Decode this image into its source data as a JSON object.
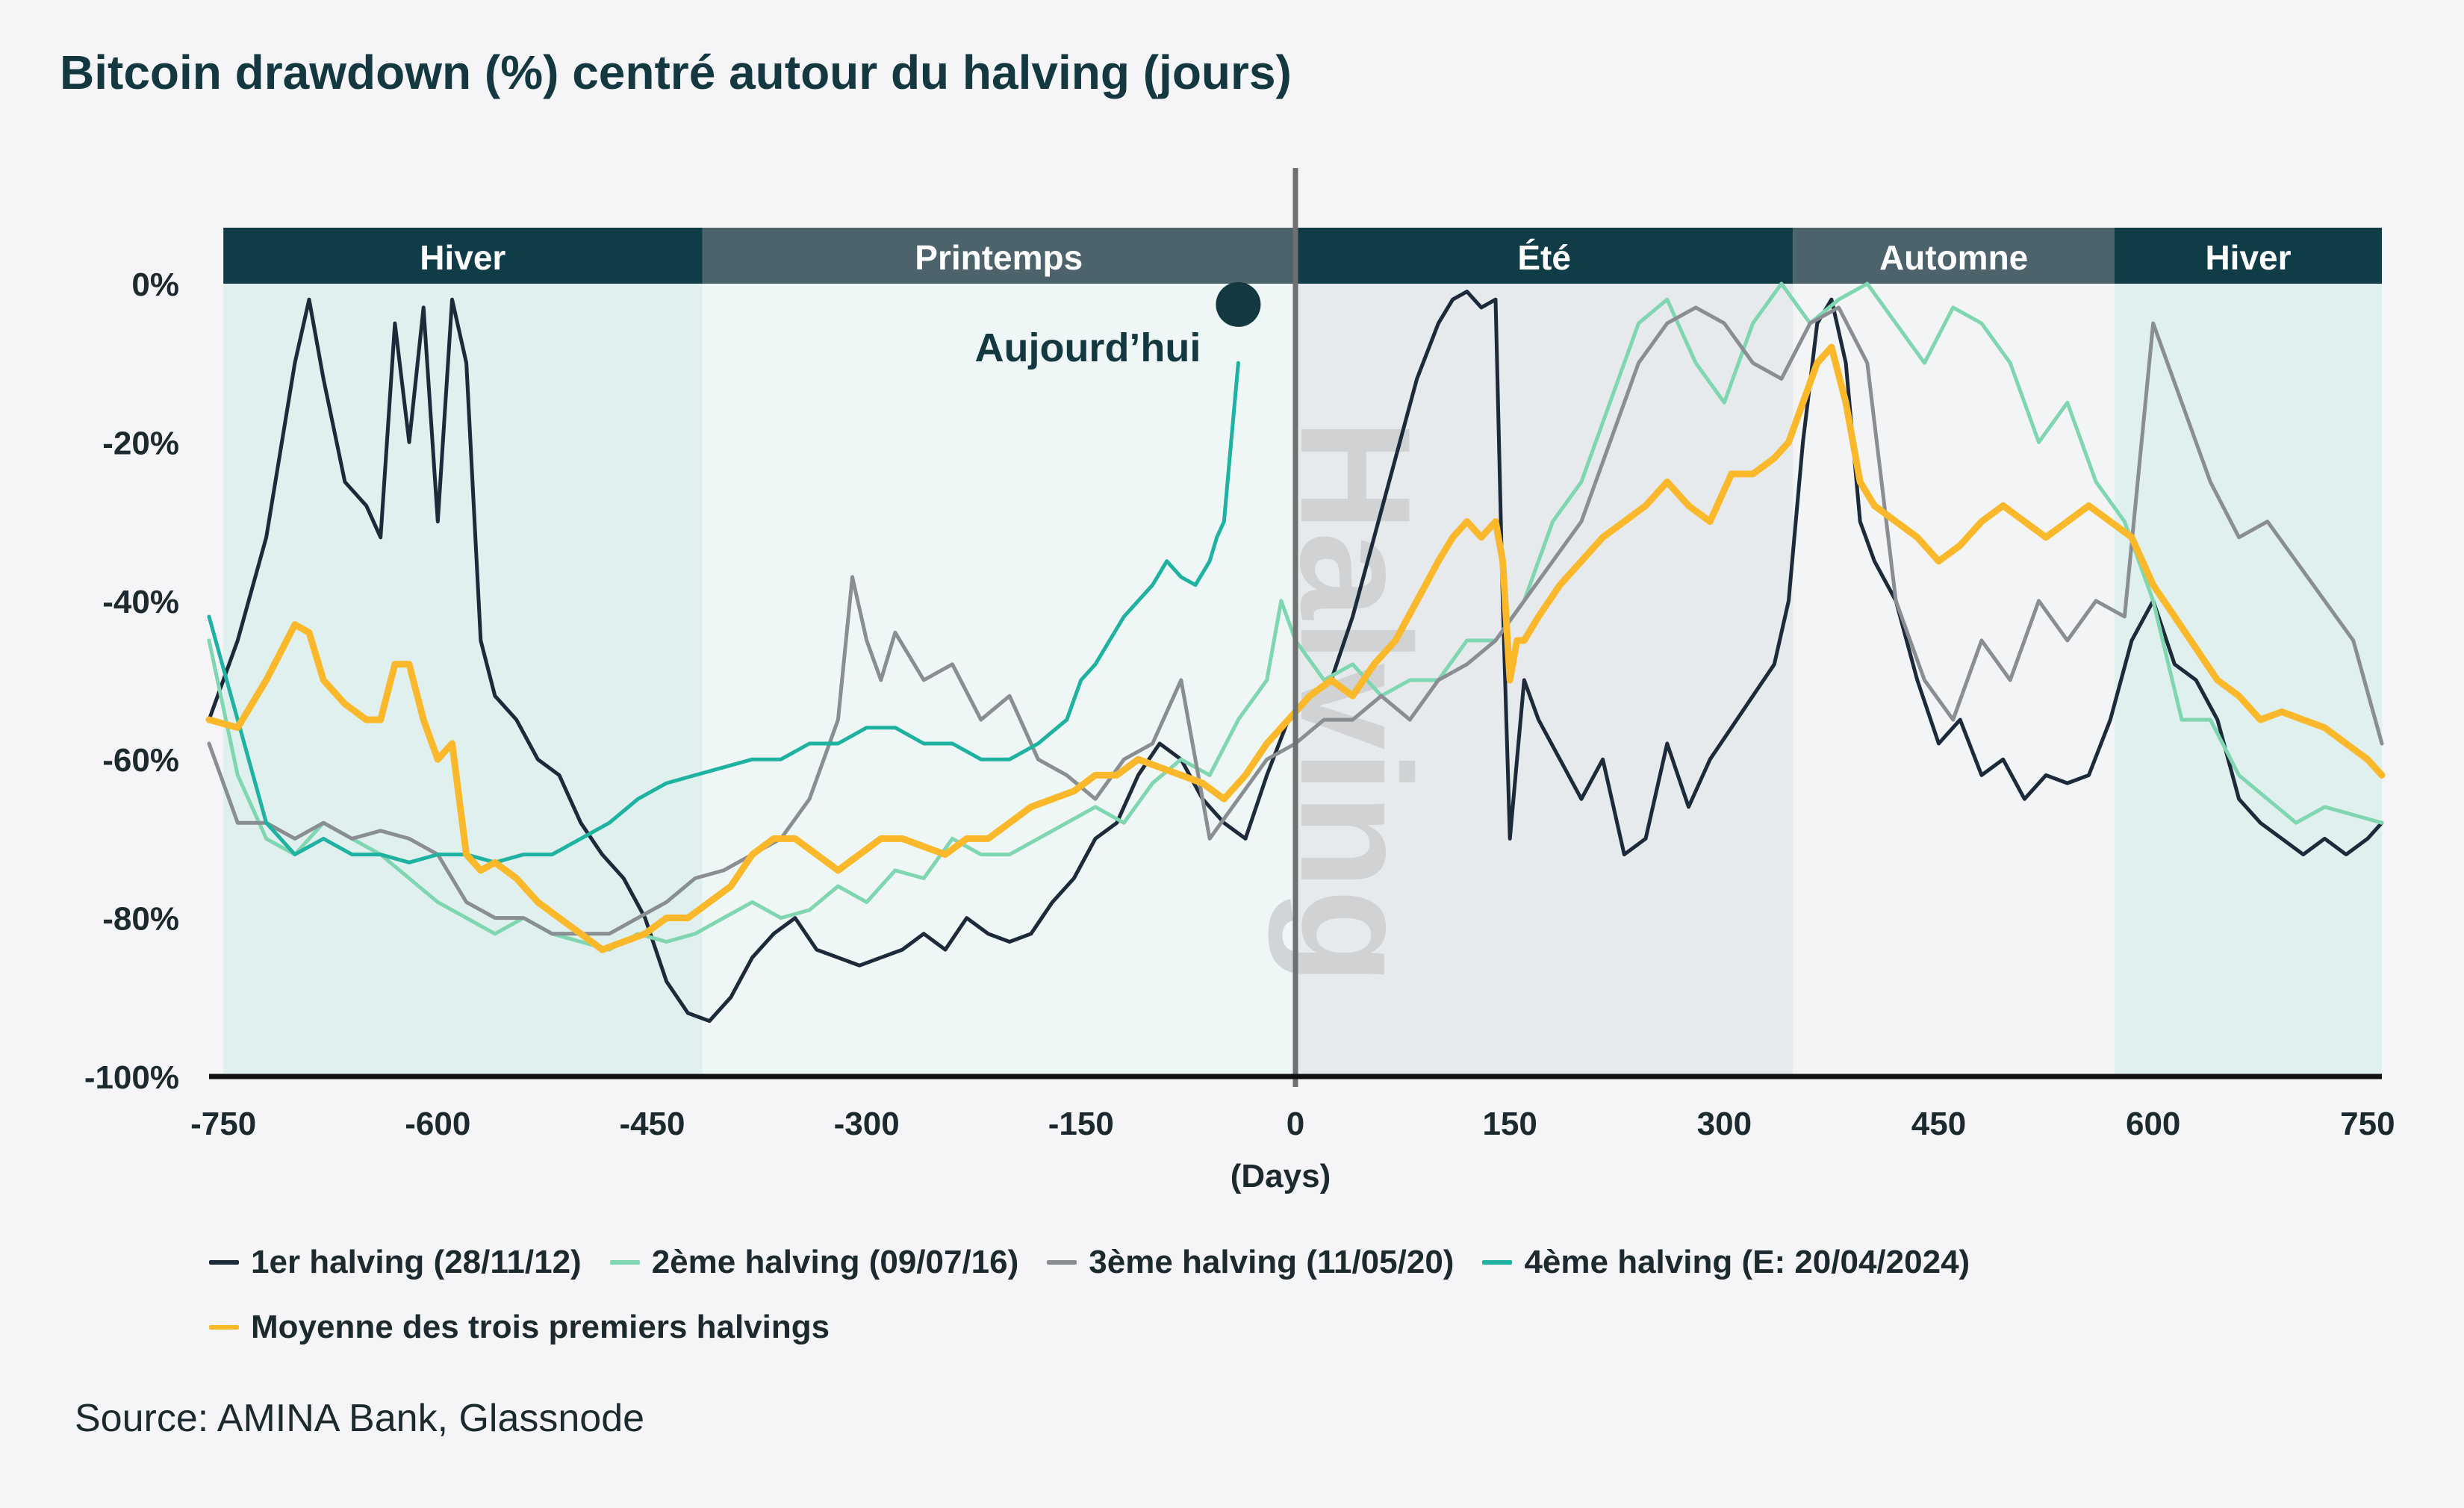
{
  "chart_data": {
    "type": "line",
    "title": "Bitcoin drawdown (%) centré autour du halving (jours)",
    "xlabel": "(Days)",
    "ylabel": "",
    "xlim": [
      -750,
      750
    ],
    "ylim": [
      -100,
      0
    ],
    "x_ticks": [
      "-750",
      "-600",
      "-450",
      "-300",
      "-150",
      "0",
      "150",
      "300",
      "450",
      "600",
      "750"
    ],
    "x_tick_values": [
      -750,
      -600,
      -450,
      -300,
      -150,
      0,
      150,
      300,
      450,
      600,
      750
    ],
    "y_ticks": [
      "0%",
      "-20%",
      "-40%",
      "-60%",
      "-80%",
      "-100%"
    ],
    "y_tick_values": [
      0,
      -20,
      -40,
      -60,
      -80,
      -100
    ],
    "seasons": [
      {
        "label": "Hiver",
        "from": -750,
        "to": -415,
        "band": "#0f3c46",
        "fill": "#e0f0ee"
      },
      {
        "label": "Printemps",
        "from": -415,
        "to": 0,
        "band": "#4c636b",
        "fill": "#eef6f6"
      },
      {
        "label": "Été",
        "from": 0,
        "to": 348,
        "band": "#0f3c46",
        "fill": "#e6eaec"
      },
      {
        "label": "Automne",
        "from": 348,
        "to": 573,
        "band": "#4c636b",
        "fill": "#f3f4f6"
      },
      {
        "label": "Hiver",
        "from": 573,
        "to": 760,
        "band": "#0f3c46",
        "fill": "#e0f0ee"
      }
    ],
    "halving_label": "Halving",
    "annotation": {
      "text": "Aujourd’hui",
      "x": -40,
      "y": -3
    },
    "series": [
      {
        "name": "1er halving (28/11/12)",
        "color": "#1c2a3a",
        "x": [
          -760,
          -740,
          -720,
          -700,
          -690,
          -680,
          -665,
          -650,
          -640,
          -630,
          -620,
          -610,
          -600,
          -590,
          -580,
          -570,
          -560,
          -545,
          -530,
          -515,
          -500,
          -485,
          -470,
          -455,
          -440,
          -425,
          -410,
          -395,
          -380,
          -365,
          -350,
          -335,
          -320,
          -305,
          -290,
          -275,
          -260,
          -245,
          -230,
          -215,
          -200,
          -185,
          -170,
          -155,
          -140,
          -125,
          -110,
          -95,
          -80,
          -65,
          -50,
          -35,
          -20,
          -5,
          10,
          25,
          40,
          55,
          70,
          85,
          100,
          110,
          120,
          130,
          140,
          145,
          150,
          155,
          160,
          170,
          185,
          200,
          215,
          230,
          245,
          260,
          275,
          290,
          305,
          320,
          335,
          345,
          355,
          365,
          375,
          385,
          395,
          405,
          420,
          435,
          450,
          465,
          480,
          495,
          510,
          525,
          540,
          555,
          570,
          585,
          600,
          615,
          630,
          645,
          660,
          675,
          690,
          705,
          720,
          735,
          750,
          760
        ],
        "y": [
          -55,
          -45,
          -32,
          -10,
          -2,
          -12,
          -25,
          -28,
          -32,
          -5,
          -20,
          -3,
          -30,
          -2,
          -10,
          -45,
          -52,
          -55,
          -60,
          -62,
          -68,
          -72,
          -75,
          -80,
          -88,
          -92,
          -93,
          -90,
          -85,
          -82,
          -80,
          -84,
          -85,
          -86,
          -85,
          -84,
          -82,
          -84,
          -80,
          -82,
          -83,
          -82,
          -78,
          -75,
          -70,
          -68,
          -62,
          -58,
          -60,
          -65,
          -68,
          -70,
          -62,
          -55,
          -52,
          -50,
          -42,
          -32,
          -22,
          -12,
          -5,
          -2,
          -1,
          -3,
          -2,
          -40,
          -70,
          -60,
          -50,
          -55,
          -60,
          -65,
          -60,
          -72,
          -70,
          -58,
          -66,
          -60,
          -56,
          -52,
          -48,
          -40,
          -20,
          -5,
          -2,
          -10,
          -30,
          -35,
          -40,
          -50,
          -58,
          -55,
          -62,
          -60,
          -65,
          -62,
          -63,
          -62,
          -55,
          -45,
          -40,
          -48,
          -50,
          -55,
          -65,
          -68,
          -70,
          -72,
          -70,
          -72,
          -70,
          -68
        ]
      },
      {
        "name": "2ème halving (09/07/16)",
        "color": "#7fd6b0",
        "x": [
          -760,
          -740,
          -720,
          -700,
          -680,
          -660,
          -640,
          -620,
          -600,
          -580,
          -560,
          -540,
          -520,
          -500,
          -480,
          -460,
          -440,
          -420,
          -400,
          -380,
          -360,
          -340,
          -320,
          -300,
          -280,
          -260,
          -240,
          -220,
          -200,
          -180,
          -160,
          -140,
          -120,
          -100,
          -80,
          -60,
          -40,
          -20,
          -10,
          0,
          20,
          40,
          60,
          80,
          100,
          120,
          140,
          160,
          180,
          200,
          220,
          240,
          260,
          280,
          300,
          320,
          340,
          360,
          380,
          400,
          420,
          440,
          460,
          480,
          500,
          520,
          540,
          560,
          580,
          600,
          620,
          640,
          660,
          680,
          700,
          720,
          740,
          760
        ],
        "y": [
          -45,
          -62,
          -70,
          -72,
          -68,
          -70,
          -72,
          -75,
          -78,
          -80,
          -82,
          -80,
          -82,
          -83,
          -84,
          -82,
          -83,
          -82,
          -80,
          -78,
          -80,
          -79,
          -76,
          -78,
          -74,
          -75,
          -70,
          -72,
          -72,
          -70,
          -68,
          -66,
          -68,
          -63,
          -60,
          -62,
          -55,
          -50,
          -40,
          -45,
          -50,
          -48,
          -52,
          -50,
          -50,
          -45,
          -45,
          -40,
          -30,
          -25,
          -15,
          -5,
          -2,
          -10,
          -15,
          -5,
          0,
          -5,
          -2,
          0,
          -5,
          -10,
          -3,
          -5,
          -10,
          -20,
          -15,
          -25,
          -30,
          -40,
          -55,
          -55,
          -62,
          -65,
          -68,
          -66,
          -67,
          -68
        ]
      },
      {
        "name": "3ème halving (11/05/20)",
        "color": "#8a8e92",
        "x": [
          -760,
          -740,
          -720,
          -700,
          -680,
          -660,
          -640,
          -620,
          -600,
          -580,
          -560,
          -540,
          -520,
          -500,
          -480,
          -460,
          -440,
          -420,
          -400,
          -380,
          -360,
          -340,
          -320,
          -310,
          -300,
          -290,
          -280,
          -260,
          -240,
          -220,
          -200,
          -180,
          -160,
          -140,
          -120,
          -100,
          -80,
          -60,
          -40,
          -20,
          0,
          20,
          40,
          60,
          80,
          100,
          120,
          140,
          160,
          180,
          200,
          220,
          240,
          260,
          280,
          300,
          320,
          340,
          360,
          380,
          400,
          420,
          440,
          460,
          480,
          500,
          520,
          540,
          560,
          580,
          600,
          620,
          640,
          660,
          680,
          700,
          720,
          740,
          760
        ],
        "y": [
          -58,
          -68,
          -68,
          -70,
          -68,
          -70,
          -69,
          -70,
          -72,
          -78,
          -80,
          -80,
          -82,
          -82,
          -82,
          -80,
          -78,
          -75,
          -74,
          -72,
          -70,
          -65,
          -55,
          -37,
          -45,
          -50,
          -44,
          -50,
          -48,
          -55,
          -52,
          -60,
          -62,
          -65,
          -60,
          -58,
          -50,
          -70,
          -65,
          -60,
          -58,
          -55,
          -55,
          -52,
          -55,
          -50,
          -48,
          -45,
          -40,
          -35,
          -30,
          -20,
          -10,
          -5,
          -3,
          -5,
          -10,
          -12,
          -5,
          -3,
          -10,
          -40,
          -50,
          -55,
          -45,
          -50,
          -40,
          -45,
          -40,
          -42,
          -5,
          -15,
          -25,
          -32,
          -30,
          -35,
          -40,
          -45,
          -58
        ]
      },
      {
        "name": "4ème halving (E: 20/04/2024)",
        "color": "#1fb2a0",
        "x": [
          -760,
          -740,
          -720,
          -700,
          -680,
          -660,
          -640,
          -620,
          -600,
          -580,
          -560,
          -540,
          -520,
          -500,
          -480,
          -460,
          -440,
          -420,
          -400,
          -380,
          -360,
          -340,
          -320,
          -300,
          -280,
          -260,
          -240,
          -220,
          -200,
          -180,
          -160,
          -150,
          -140,
          -130,
          -120,
          -110,
          -100,
          -90,
          -80,
          -70,
          -60,
          -55,
          -50,
          -45,
          -40
        ],
        "y": [
          -42,
          -55,
          -68,
          -72,
          -70,
          -72,
          -72,
          -73,
          -72,
          -72,
          -73,
          -72,
          -72,
          -70,
          -68,
          -65,
          -63,
          -62,
          -61,
          -60,
          -60,
          -58,
          -58,
          -56,
          -56,
          -58,
          -58,
          -60,
          -60,
          -58,
          -55,
          -50,
          -48,
          -45,
          -42,
          -40,
          -38,
          -35,
          -37,
          -38,
          -35,
          -32,
          -30,
          -20,
          -10
        ]
      },
      {
        "name": "Moyenne des trois premiers halvings",
        "color": "#fbb82b",
        "x": [
          -760,
          -740,
          -720,
          -700,
          -690,
          -680,
          -665,
          -650,
          -640,
          -630,
          -620,
          -610,
          -600,
          -590,
          -580,
          -570,
          -560,
          -545,
          -530,
          -515,
          -500,
          -485,
          -470,
          -455,
          -440,
          -425,
          -410,
          -395,
          -380,
          -365,
          -350,
          -335,
          -320,
          -305,
          -290,
          -275,
          -260,
          -245,
          -230,
          -215,
          -200,
          -185,
          -170,
          -155,
          -140,
          -125,
          -110,
          -95,
          -80,
          -65,
          -50,
          -35,
          -20,
          -5,
          10,
          25,
          40,
          55,
          70,
          85,
          100,
          110,
          120,
          130,
          140,
          145,
          150,
          155,
          160,
          170,
          185,
          200,
          215,
          230,
          245,
          260,
          275,
          290,
          305,
          320,
          335,
          345,
          355,
          365,
          375,
          385,
          395,
          405,
          420,
          435,
          450,
          465,
          480,
          495,
          510,
          525,
          540,
          555,
          570,
          585,
          600,
          615,
          630,
          645,
          660,
          675,
          690,
          705,
          720,
          735,
          750,
          760
        ],
        "y": [
          -55,
          -56,
          -50,
          -43,
          -44,
          -50,
          -53,
          -55,
          -55,
          -48,
          -48,
          -55,
          -60,
          -58,
          -72,
          -74,
          -73,
          -75,
          -78,
          -80,
          -82,
          -84,
          -83,
          -82,
          -80,
          -80,
          -78,
          -76,
          -72,
          -70,
          -70,
          -72,
          -74,
          -72,
          -70,
          -70,
          -71,
          -72,
          -70,
          -70,
          -68,
          -66,
          -65,
          -64,
          -62,
          -62,
          -60,
          -61,
          -62,
          -63,
          -65,
          -62,
          -58,
          -55,
          -52,
          -50,
          -52,
          -48,
          -45,
          -40,
          -35,
          -32,
          -30,
          -32,
          -30,
          -35,
          -50,
          -45,
          -45,
          -42,
          -38,
          -35,
          -32,
          -30,
          -28,
          -25,
          -28,
          -30,
          -24,
          -24,
          -22,
          -20,
          -15,
          -10,
          -8,
          -15,
          -25,
          -28,
          -30,
          -32,
          -35,
          -33,
          -30,
          -28,
          -30,
          -32,
          -30,
          -28,
          -30,
          -32,
          -38,
          -42,
          -46,
          -50,
          -52,
          -55,
          -54,
          -55,
          -56,
          -58,
          -60,
          -62
        ]
      }
    ],
    "legend_position": "bottom",
    "source": "Source: AMINA Bank, Glassnode"
  }
}
